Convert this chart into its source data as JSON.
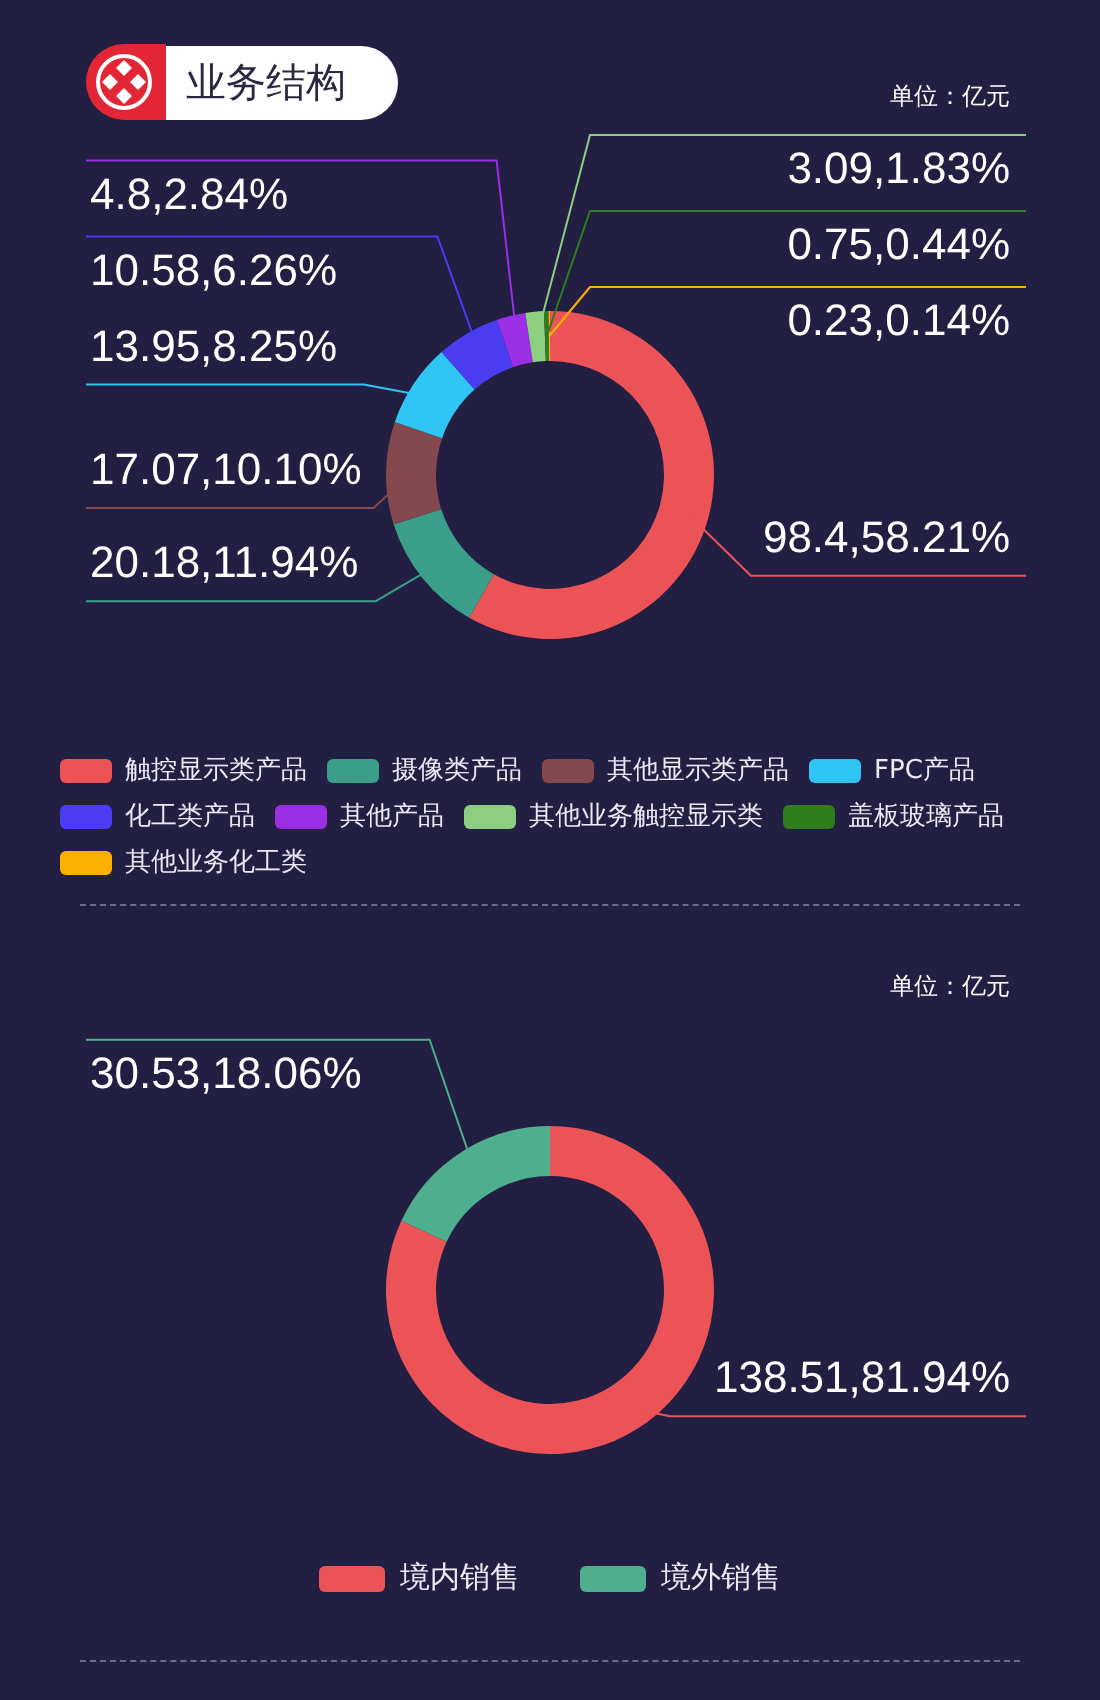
{
  "chart_data": [
    {
      "type": "donut",
      "title": "业务结构",
      "annotations": [
        "单位：亿元"
      ],
      "categories": [
        "触控显示类产品",
        "摄像类产品",
        "其他显示类产品",
        "FPC产品",
        "化工类产品",
        "其他产品",
        "其他业务触控显示类",
        "盖板玻璃产品",
        "其他业务化工类"
      ],
      "values": [
        58.21,
        11.94,
        10.1,
        8.25,
        6.26,
        2.84,
        1.83,
        0.44,
        0.14
      ],
      "colors": [
        "#ec5356",
        "#3a9e88",
        "#84494f",
        "#2fc6f6",
        "#4b3df2",
        "#9a2fe6",
        "#8ccf80",
        "#2f7d1c",
        "#ffb000"
      ],
      "value_labels": [
        "98.4,58.21%",
        "20.18,11.94%",
        "17.07,10.10%",
        "13.95,8.25%",
        "10.58,6.26%",
        "4.8,2.84%",
        "3.09,1.83%",
        "0.75,0.44%",
        "0.23,0.14%"
      ],
      "legend": "bottom left"
    },
    {
      "type": "donut",
      "annotations": [
        "单位：亿元"
      ],
      "categories": [
        "境内销售",
        "境外销售"
      ],
      "values": [
        81.94,
        18.06
      ],
      "colors": [
        "#ec5356",
        "#4fae8e"
      ],
      "value_labels": [
        "138.51,81.94%",
        "30.53,18.06%"
      ],
      "legend": "bottom"
    }
  ]
}
